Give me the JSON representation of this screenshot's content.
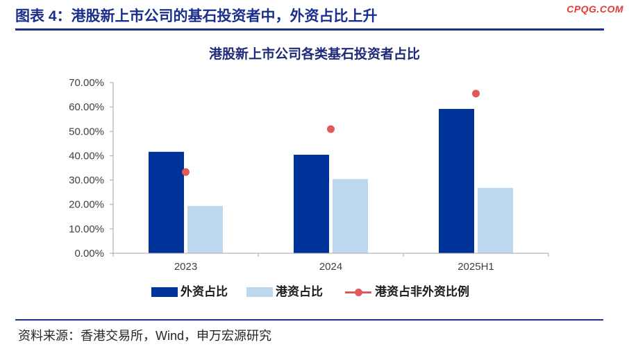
{
  "header": {
    "title": "图表 4：港股新上市公司的基石投资者中，外资占比上升",
    "watermark": "CPQG.COM"
  },
  "colors": {
    "header_text": "#1A2E8C",
    "rule": "#1F2F8F",
    "watermark": "#E53935",
    "axis": "#A6A6A6"
  },
  "chart_data": {
    "type": "bar",
    "title": "港股新上市公司各类基石投资者占比",
    "categories": [
      "2023",
      "2024",
      "2025H1"
    ],
    "series": [
      {
        "name": "外资占比",
        "type": "bar",
        "color": "#003399",
        "values": [
          41.6,
          40.4,
          59.2
        ]
      },
      {
        "name": "港资占比",
        "type": "bar",
        "color": "#BDD7EE",
        "values": [
          19.4,
          30.4,
          26.8
        ]
      },
      {
        "name": "港资占非外资比例",
        "type": "scatter",
        "color": "#E05A5A",
        "values": [
          33.3,
          50.9,
          65.5
        ]
      }
    ],
    "ylim": [
      0,
      70
    ],
    "yticks": [
      0,
      10,
      20,
      30,
      40,
      50,
      60,
      70
    ],
    "ytick_labels": [
      "0.00%",
      "10.00%",
      "20.00%",
      "30.00%",
      "40.00%",
      "50.00%",
      "60.00%",
      "70.00%"
    ],
    "xlabel": "",
    "ylabel": "",
    "grid": false,
    "legend": "bottom"
  },
  "footer": {
    "source": "资料来源：香港交易所，Wind，申万宏源研究"
  }
}
